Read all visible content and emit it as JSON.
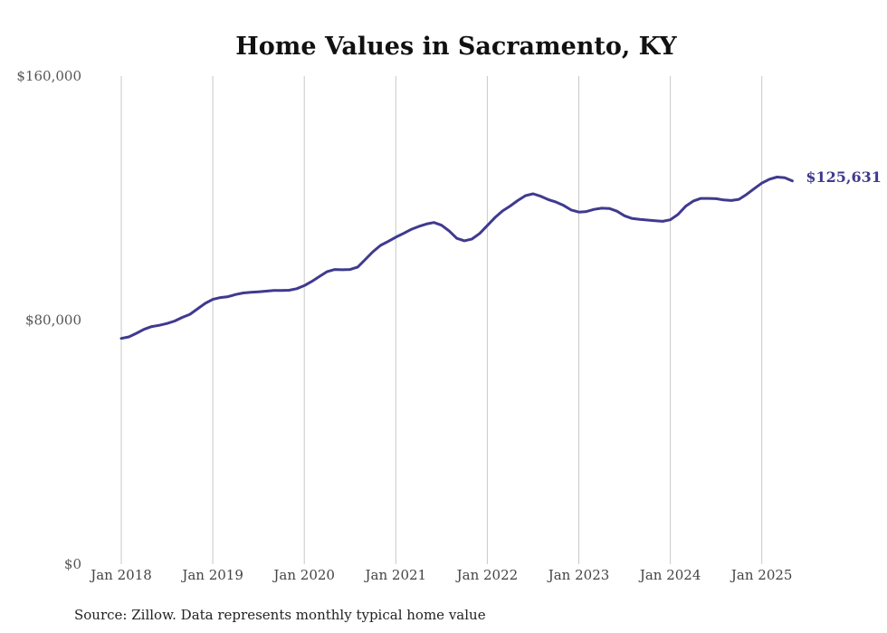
{
  "chart_data": {
    "type": "line",
    "title": "Home Values in Sacramento, KY",
    "source_note": "Source: Zillow. Data represents monthly typical home value",
    "xlabel": "",
    "ylabel": "",
    "ylim": [
      0,
      160000
    ],
    "yticks": [
      {
        "value": 0,
        "label": "$0"
      },
      {
        "value": 80000,
        "label": "$80,000"
      },
      {
        "value": 160000,
        "label": "$160,000"
      }
    ],
    "xticks": [
      "Jan 2018",
      "Jan 2019",
      "Jan 2020",
      "Jan 2021",
      "Jan 2022",
      "Jan 2023",
      "Jan 2024",
      "Jan 2025"
    ],
    "grid": "vertical",
    "line_color": "#3f3a8f",
    "end_label": "$125,631",
    "series": [
      {
        "x": [
          "2018-01",
          "2018-02",
          "2018-03",
          "2018-04",
          "2018-05",
          "2018-06",
          "2018-07",
          "2018-08",
          "2018-09",
          "2018-10",
          "2018-11",
          "2018-12",
          "2019-01",
          "2019-02",
          "2019-03",
          "2019-04",
          "2019-05",
          "2019-06",
          "2019-07",
          "2019-08",
          "2019-09",
          "2019-10",
          "2019-11",
          "2019-12",
          "2020-01",
          "2020-02",
          "2020-03",
          "2020-04",
          "2020-05",
          "2020-06",
          "2020-07",
          "2020-08",
          "2020-09",
          "2020-10",
          "2020-11",
          "2020-12",
          "2021-01",
          "2021-02",
          "2021-03",
          "2021-04",
          "2021-05",
          "2021-06",
          "2021-07",
          "2021-08",
          "2021-09",
          "2021-10",
          "2021-11",
          "2021-12",
          "2022-01",
          "2022-02",
          "2022-03",
          "2022-04",
          "2022-05",
          "2022-06",
          "2022-07",
          "2022-08",
          "2022-09",
          "2022-10",
          "2022-11",
          "2022-12",
          "2023-01",
          "2023-02",
          "2023-03",
          "2023-04",
          "2023-05",
          "2023-06",
          "2023-07",
          "2023-08",
          "2023-09",
          "2023-10",
          "2023-11",
          "2023-12",
          "2024-01",
          "2024-02",
          "2024-03",
          "2024-04",
          "2024-05",
          "2024-06",
          "2024-07",
          "2024-08",
          "2024-09",
          "2024-10",
          "2024-11",
          "2024-12",
          "2025-01",
          "2025-02",
          "2025-03",
          "2025-04",
          "2025-05"
        ],
        "values": [
          74000,
          74500,
          75700,
          77000,
          77900,
          78300,
          78900,
          79700,
          80900,
          81900,
          83700,
          85500,
          86800,
          87400,
          87700,
          88400,
          88900,
          89100,
          89300,
          89500,
          89700,
          89700,
          89800,
          90300,
          91300,
          92700,
          94300,
          95900,
          96600,
          96500,
          96600,
          97400,
          99900,
          102400,
          104500,
          105800,
          107200,
          108400,
          109700,
          110700,
          111500,
          112000,
          111100,
          109200,
          106800,
          106000,
          106600,
          108400,
          111000,
          113600,
          115800,
          117400,
          119200,
          120800,
          121400,
          120600,
          119500,
          118700,
          117600,
          116100,
          115400,
          115600,
          116300,
          116700,
          116600,
          115700,
          114200,
          113300,
          113000,
          112800,
          112600,
          112400,
          112900,
          114600,
          117300,
          119000,
          119900,
          119900,
          119800,
          119400,
          119200,
          119600,
          121200,
          123100,
          124900,
          126200,
          126900,
          126700,
          125631
        ]
      }
    ]
  }
}
